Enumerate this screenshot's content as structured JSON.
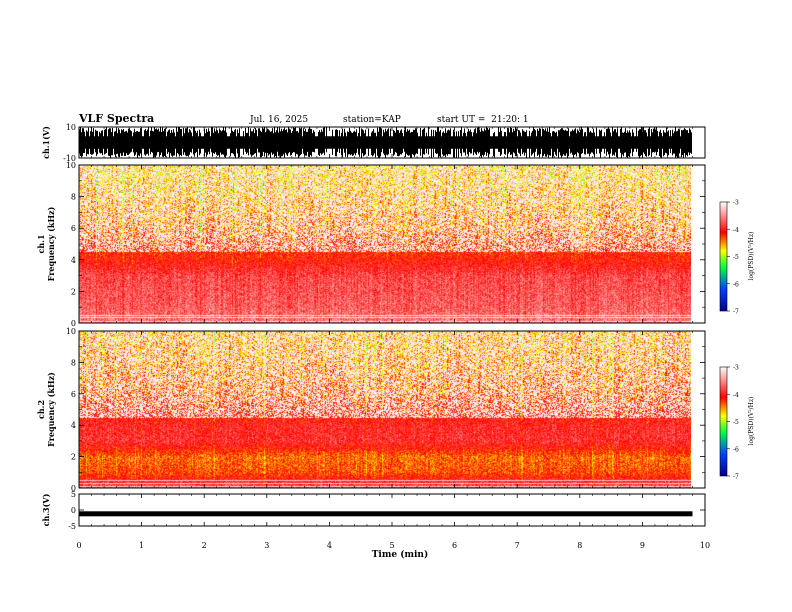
{
  "header": {
    "title": "VLF Spectra",
    "date": "Jul. 16, 2025",
    "station": "station=KAP",
    "start_ut": "start UT =  21:20: 1"
  },
  "chart_data": [
    {
      "type": "line",
      "name": "ch1-waveform",
      "ylabel": "ch.1(V)",
      "ylim": [
        -10,
        10
      ],
      "yticks": [
        "10",
        "-10"
      ],
      "x_range_min": [
        0,
        10
      ],
      "data_end_min": 9.8,
      "note": "dense black broadband waveform, saturating the panel"
    },
    {
      "type": "heatmap",
      "name": "ch1-spectrogram",
      "ylabel": "ch.1\nFrequency (kHz)",
      "ylim": [
        0,
        10
      ],
      "yticks": [
        "0",
        "2",
        "4",
        "6",
        "8",
        "10"
      ],
      "x_range_min": [
        0,
        9.8
      ],
      "colorbar": {
        "label": "log(PSD)(V²/Hz)",
        "range": [
          -7,
          -3
        ],
        "ticks": [
          "-3",
          "-4",
          "-5",
          "-6",
          "-7"
        ]
      },
      "profile_khz": [
        0,
        1,
        2,
        3,
        4,
        6,
        8,
        10
      ],
      "profile_level": [
        -3.6,
        -3.7,
        -3.75,
        -3.8,
        -4.1,
        -4.45,
        -4.6,
        -4.7
      ]
    },
    {
      "type": "heatmap",
      "name": "ch2-spectrogram",
      "ylabel": "ch.2\nFrequency (kHz)",
      "ylim": [
        0,
        10
      ],
      "yticks": [
        "0",
        "2",
        "4",
        "6",
        "8",
        "10"
      ],
      "x_range_min": [
        0,
        9.8
      ],
      "colorbar": {
        "label": "log(PSD)(V²/Hz)",
        "range": [
          -7,
          -3
        ],
        "ticks": [
          "-3",
          "-4",
          "-5",
          "-6",
          "-7"
        ]
      },
      "profile_khz": [
        0,
        1,
        2,
        3,
        4,
        4.5,
        6,
        8,
        10
      ],
      "profile_level": [
        -3.7,
        -4.3,
        -4.4,
        -3.9,
        -3.95,
        -4.1,
        -4.35,
        -4.5,
        -4.6
      ]
    },
    {
      "type": "line",
      "name": "ch3-waveform",
      "ylabel": "ch.3(V)",
      "ylim": [
        -5,
        5
      ],
      "yticks": [
        "5",
        "0",
        "-5"
      ],
      "x_range_min": [
        0,
        9.8
      ],
      "level_v": -1.2,
      "note": "thin black band near -1.2 V"
    }
  ],
  "xaxis": {
    "label": "Time (min)",
    "range": [
      0,
      10
    ],
    "ticks": [
      "0",
      "1",
      "2",
      "3",
      "4",
      "5",
      "6",
      "7",
      "8",
      "9",
      "10"
    ]
  }
}
